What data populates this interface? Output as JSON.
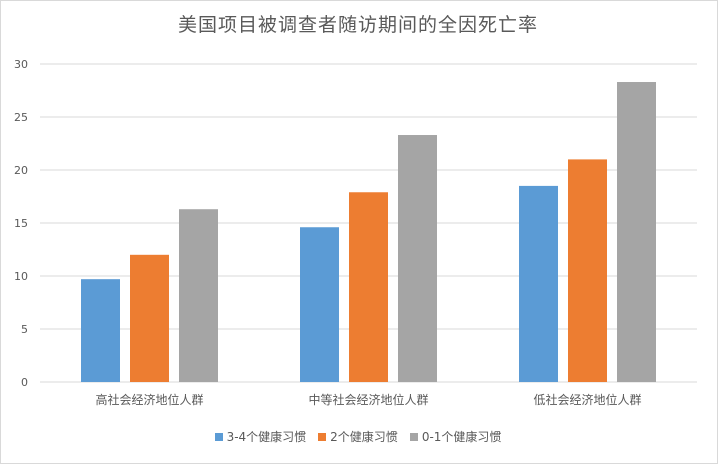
{
  "chart_data": {
    "type": "bar",
    "title": "美国项目被调查者随访期间的全因死亡率",
    "categories": [
      "高社会经济地位人群",
      "中等社会经济地位人群",
      "低社会经济地位人群"
    ],
    "series": [
      {
        "name": "3-4个健康习惯",
        "color": "#5b9bd5",
        "values": [
          9.7,
          14.6,
          18.5
        ]
      },
      {
        "name": "2个健康习惯",
        "color": "#ed7d31",
        "values": [
          12.0,
          17.9,
          21.0
        ]
      },
      {
        "name": "0-1个健康习惯",
        "color": "#a5a5a5",
        "values": [
          16.3,
          23.3,
          28.3
        ]
      }
    ],
    "ylim": [
      0,
      30
    ],
    "yticks": [
      "0",
      "5",
      "10",
      "15",
      "20",
      "25",
      "30"
    ],
    "grid": true,
    "legend_position": "bottom"
  }
}
